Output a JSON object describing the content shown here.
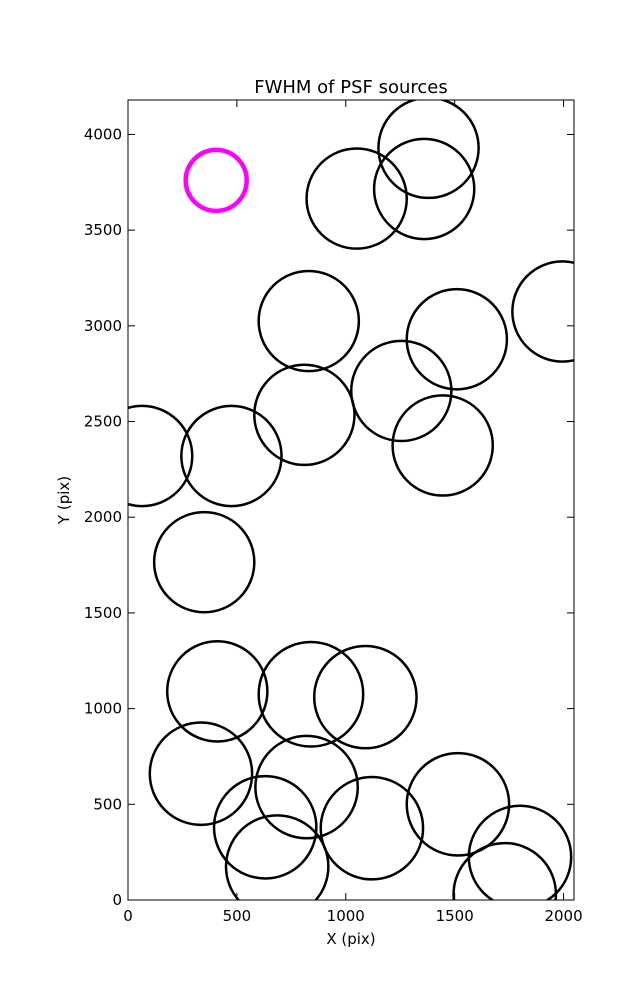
{
  "chart_data": {
    "type": "scatter",
    "title": "FWHM of PSF sources",
    "xlabel": "X (pix)",
    "ylabel": "Y (pix)",
    "xlim": [
      0,
      2048
    ],
    "ylim": [
      0,
      4180
    ],
    "xticks": [
      0,
      500,
      1000,
      1500,
      2000
    ],
    "yticks": [
      0,
      500,
      1000,
      1500,
      2000,
      2500,
      3000,
      3500,
      4000
    ],
    "grid": false,
    "marker": "circle",
    "reference": {
      "x": 405,
      "y": 3760,
      "radius": 140,
      "color": "#ff00ff"
    },
    "sources": [
      {
        "x": 1380,
        "y": 3930,
        "radius": 230
      },
      {
        "x": 1050,
        "y": 3665,
        "radius": 230
      },
      {
        "x": 1360,
        "y": 3715,
        "radius": 230
      },
      {
        "x": 830,
        "y": 3025,
        "radius": 230
      },
      {
        "x": 1510,
        "y": 2930,
        "radius": 230
      },
      {
        "x": 1995,
        "y": 3075,
        "radius": 230
      },
      {
        "x": 1255,
        "y": 2660,
        "radius": 230
      },
      {
        "x": 810,
        "y": 2535,
        "radius": 230
      },
      {
        "x": 1445,
        "y": 2375,
        "radius": 230
      },
      {
        "x": 65,
        "y": 2320,
        "radius": 230
      },
      {
        "x": 475,
        "y": 2320,
        "radius": 230
      },
      {
        "x": 350,
        "y": 1765,
        "radius": 230
      },
      {
        "x": 410,
        "y": 1090,
        "radius": 230
      },
      {
        "x": 840,
        "y": 1075,
        "radius": 240
      },
      {
        "x": 1090,
        "y": 1060,
        "radius": 235
      },
      {
        "x": 335,
        "y": 660,
        "radius": 235
      },
      {
        "x": 820,
        "y": 590,
        "radius": 235
      },
      {
        "x": 630,
        "y": 380,
        "radius": 235
      },
      {
        "x": 1120,
        "y": 375,
        "radius": 235
      },
      {
        "x": 1515,
        "y": 500,
        "radius": 235
      },
      {
        "x": 1800,
        "y": 225,
        "radius": 235
      },
      {
        "x": 685,
        "y": 175,
        "radius": 235
      },
      {
        "x": 1730,
        "y": 30,
        "radius": 235
      }
    ]
  }
}
